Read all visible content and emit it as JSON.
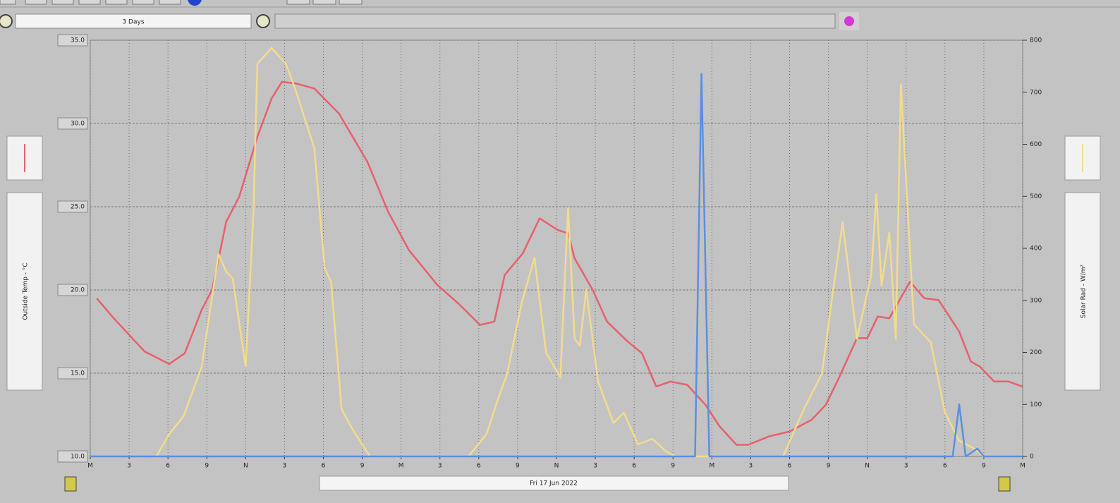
{
  "ui": {
    "range_label": "3 Days",
    "date_label": "Fri 17 Jun 2022"
  },
  "chart_data": {
    "type": "line",
    "ylabel": "Outside Temp - °C",
    "y2label": "Solar Rad - W/m²",
    "xlim": [
      0,
      72
    ],
    "xticks": [
      {
        "value": 0,
        "label": "M"
      },
      {
        "value": 3,
        "label": "3"
      },
      {
        "value": 6,
        "label": "6"
      },
      {
        "value": 9,
        "label": "9"
      },
      {
        "value": 12,
        "label": "N"
      },
      {
        "value": 15,
        "label": "3"
      },
      {
        "value": 18,
        "label": "6"
      },
      {
        "value": 21,
        "label": "9"
      },
      {
        "value": 24,
        "label": "M"
      },
      {
        "value": 27,
        "label": "3"
      },
      {
        "value": 30,
        "label": "6"
      },
      {
        "value": 33,
        "label": "9"
      },
      {
        "value": 36,
        "label": "N"
      },
      {
        "value": 39,
        "label": "3"
      },
      {
        "value": 42,
        "label": "6"
      },
      {
        "value": 45,
        "label": "9"
      },
      {
        "value": 48,
        "label": "M"
      },
      {
        "value": 51,
        "label": "3"
      },
      {
        "value": 54,
        "label": "6"
      },
      {
        "value": 57,
        "label": "9"
      },
      {
        "value": 60,
        "label": "N"
      },
      {
        "value": 63,
        "label": "3"
      },
      {
        "value": 66,
        "label": "6"
      },
      {
        "value": 69,
        "label": "9"
      },
      {
        "value": 72,
        "label": "M"
      }
    ],
    "ylim": [
      10,
      35
    ],
    "yticks": [
      {
        "value": 10,
        "label": "10.0"
      },
      {
        "value": 15,
        "label": "15.0"
      },
      {
        "value": 20,
        "label": "20.0"
      },
      {
        "value": 25,
        "label": "25.0"
      },
      {
        "value": 30,
        "label": "30.0"
      },
      {
        "value": 35,
        "label": "35.0"
      }
    ],
    "y2lim": [
      0,
      800
    ],
    "y2ticks": [
      0,
      100,
      200,
      300,
      400,
      500,
      600,
      700,
      800
    ],
    "grid": true,
    "series": [
      {
        "color": "#e8606a",
        "x": [
          0.5,
          1.7,
          4.2,
          6.1,
          7.3,
          8.6,
          9.4,
          10.5,
          11.5,
          12.9,
          14.0,
          14.8,
          15.9,
          17.3,
          19.2,
          21.4,
          23.0,
          24.6,
          26.8,
          28.4,
          30.1,
          31.2,
          32.0,
          33.4,
          34.7,
          36.1,
          36.9,
          37.4,
          38.8,
          39.9,
          41.5,
          42.6,
          43.7,
          44.8,
          46.1,
          47.5,
          48.6,
          49.9,
          50.8,
          52.4,
          54.0,
          55.7,
          56.8,
          57.8,
          59.2,
          60.0,
          60.8,
          61.7,
          63.3,
          64.4,
          65.5,
          67.1,
          68.0,
          68.7,
          69.8,
          70.9,
          72.0
        ],
        "values": [
          19.5,
          18.4,
          16.3,
          15.55,
          16.2,
          18.8,
          20.0,
          24.1,
          25.6,
          29.2,
          31.5,
          32.5,
          32.4,
          32.1,
          30.6,
          27.7,
          24.7,
          22.4,
          20.3,
          19.2,
          17.9,
          18.1,
          20.9,
          22.2,
          24.3,
          23.6,
          23.4,
          21.9,
          20.0,
          18.1,
          16.9,
          16.2,
          14.2,
          14.5,
          14.3,
          13.1,
          11.8,
          10.7,
          10.7,
          11.2,
          11.5,
          12.2,
          13.1,
          14.7,
          17.1,
          17.1,
          18.4,
          18.3,
          20.5,
          19.5,
          19.4,
          17.5,
          15.7,
          15.4,
          14.5,
          14.5,
          14.2
        ]
      },
      {
        "color": "#f2dc8c",
        "axis": "y2",
        "x": [
          5.1,
          6.1,
          7.2,
          8.6,
          9.9,
          10.5,
          11.0,
          12.0,
          12.6,
          12.9,
          14.0,
          15.1,
          15.9,
          17.3,
          18.1,
          18.6,
          19.4,
          20.3,
          21.6,
          29.2,
          30.6,
          31.4,
          32.2,
          33.3,
          34.3,
          35.2,
          36.3,
          36.9,
          37.4,
          37.8,
          38.3,
          39.2,
          40.4,
          41.2,
          42.3,
          43.4,
          44.5,
          45.2,
          53.5,
          55.1,
          56.5,
          57.3,
          58.1,
          59.2,
          60.3,
          60.7,
          61.1,
          61.7,
          62.2,
          62.6,
          63.6,
          64.9,
          66.0,
          67.1,
          68.2,
          69.0,
          72.0
        ],
        "values": [
          0,
          43,
          77,
          172,
          389,
          355,
          342,
          172,
          471,
          755,
          785,
          755,
          701,
          593,
          362,
          335,
          91,
          50,
          0,
          0,
          43,
          104,
          159,
          294,
          382,
          199,
          152,
          477,
          226,
          213,
          321,
          145,
          64,
          84,
          23,
          34,
          9,
          0,
          0,
          91,
          159,
          308,
          450,
          226,
          348,
          504,
          328,
          430,
          226,
          715,
          254,
          220,
          84,
          30,
          16,
          0,
          0
        ]
      },
      {
        "color": "#5b8fe0",
        "axis": "y2",
        "x": [
          0,
          46.7,
          47.2,
          47.8,
          66.6,
          67.1,
          67.6,
          68.5,
          69.0,
          72.0
        ],
        "values": [
          0,
          0,
          735,
          0,
          0,
          100,
          0,
          15,
          0,
          0
        ]
      }
    ]
  }
}
